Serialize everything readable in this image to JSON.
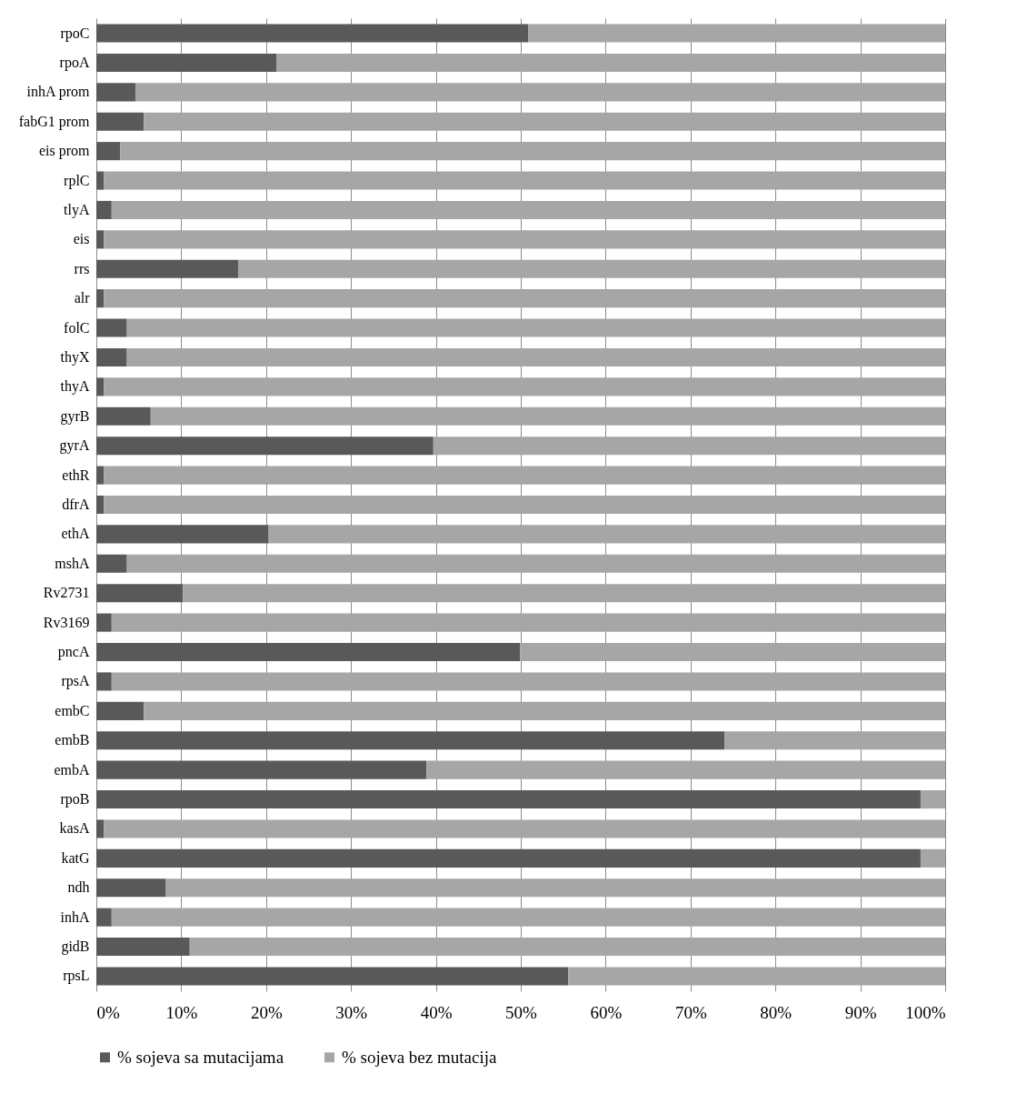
{
  "chart_data": {
    "type": "bar",
    "orientation": "horizontal",
    "stacked": true,
    "categories": [
      "rpoC",
      "rpoA",
      "inhA prom",
      "fabG1 prom",
      "eis prom",
      "rplC",
      "tlyA",
      "eis",
      "rrs",
      "alr",
      "folC",
      "thyX",
      "thyA",
      "gyrB",
      "gyrA",
      "ethR",
      "dfrA",
      "ethA",
      "mshA",
      "Rv2731",
      "Rv3169",
      "pncA",
      "rpsA",
      "embC",
      "embB",
      "embA",
      "rpoB",
      "kasA",
      "katG",
      "ndh",
      "inhA",
      "gidB",
      "rpsL"
    ],
    "series": [
      {
        "name": "% sojeva sa mutacijama",
        "color": "#595959",
        "values": [
          50.9,
          21.2,
          4.6,
          5.6,
          2.8,
          0.9,
          1.8,
          0.9,
          16.7,
          0.9,
          3.6,
          3.6,
          0.9,
          6.4,
          39.7,
          0.9,
          0.9,
          20.3,
          3.6,
          10.2,
          1.8,
          49.9,
          1.8,
          5.6,
          74.0,
          38.9,
          97.1,
          0.9,
          97.1,
          8.2,
          1.8,
          11.0,
          55.6
        ]
      },
      {
        "name": "% sojeva bez mutacija",
        "color": "#a6a6a6",
        "values": [
          49.1,
          78.8,
          95.4,
          94.4,
          97.2,
          99.1,
          98.2,
          99.1,
          83.3,
          99.1,
          96.4,
          96.4,
          99.1,
          93.6,
          60.3,
          99.1,
          99.1,
          79.7,
          96.4,
          89.8,
          98.2,
          50.1,
          98.2,
          94.4,
          26.0,
          61.1,
          2.9,
          99.1,
          2.9,
          91.8,
          98.2,
          89.0,
          44.4
        ]
      }
    ],
    "xlim": [
      0,
      100
    ],
    "xticks": [
      {
        "value": 0,
        "label": "0%"
      },
      {
        "value": 10,
        "label": "10%"
      },
      {
        "value": 20,
        "label": "20%"
      },
      {
        "value": 30,
        "label": "30%"
      },
      {
        "value": 40,
        "label": "40%"
      },
      {
        "value": 50,
        "label": "50%"
      },
      {
        "value": 60,
        "label": "60%"
      },
      {
        "value": 70,
        "label": "70%"
      },
      {
        "value": 80,
        "label": "80%"
      },
      {
        "value": 90,
        "label": "90%"
      },
      {
        "value": 100,
        "label": "100%"
      }
    ],
    "grid": "x",
    "legend": "bottom"
  }
}
